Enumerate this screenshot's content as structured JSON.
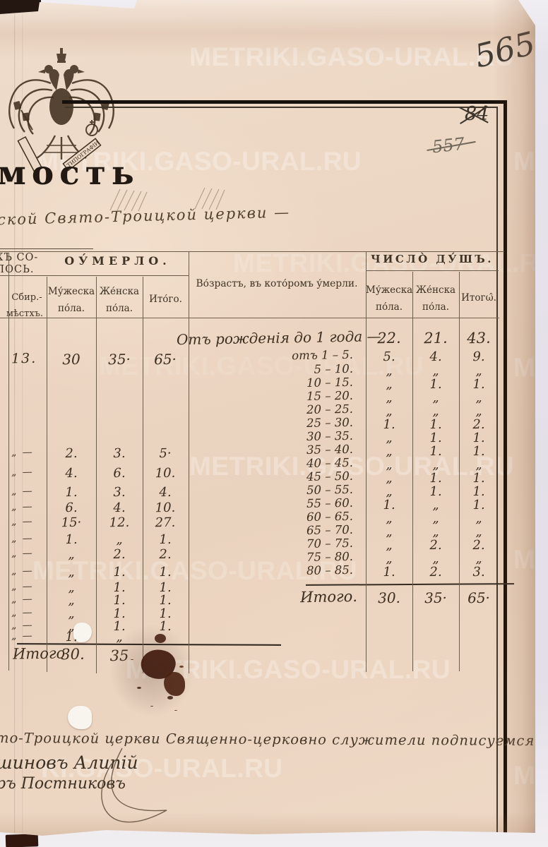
{
  "page": {
    "number": "565",
    "crossed_number_1": "84",
    "crossed_number_2": "557",
    "heading_fragment": "мость",
    "subtitle_handwritten": "ской Свято-Троицкой церкви —",
    "watermark": "METRIKI.GASO-URAL.RU",
    "watermark_cut": "KI.GASO-URAL.RU",
    "watermark_fragment": "MET",
    "stamp_ribbon_text": "ТИПОГРАФІИ"
  },
  "left_table": {
    "partial_header_line1": "ХЪ СО-",
    "partial_header_line2": "ЛОСЬ.",
    "group_header": "ОУ́МЕРЛО.",
    "sub_col_line1": "Сбир.-",
    "sub_col_line2": "мѣстхъ.",
    "col1": {
      "l1": "Му́жеска",
      "l2": "по́ла."
    },
    "col2": {
      "l1": "Же́нска",
      "l2": "по́ла."
    },
    "col3": "Ито́го.",
    "rows": [
      {
        "d": "13.",
        "m": "30",
        "f": "35·",
        "t": "65·"
      },
      {
        "d": "„ —",
        "m": "2.",
        "f": "3.",
        "t": "5·"
      },
      {
        "d": "„ —",
        "m": "4.",
        "f": "6.",
        "t": "10."
      },
      {
        "d": "„ —",
        "m": "1.",
        "f": "3.",
        "t": "4."
      },
      {
        "d": "„ —",
        "m": "6.",
        "f": "4.",
        "t": "10."
      },
      {
        "d": "„ —",
        "m": "15·",
        "f": "12.",
        "t": "27."
      },
      {
        "d": "„ —",
        "m": "1.",
        "f": "„",
        "t": "1."
      },
      {
        "d": "„ —",
        "m": "„",
        "f": "2.",
        "t": "2."
      },
      {
        "d": "„ —",
        "m": "„",
        "f": "1.",
        "t": "1."
      },
      {
        "d": "„ —",
        "m": "„",
        "f": "1.",
        "t": "1."
      },
      {
        "d": "„ —",
        "m": "„",
        "f": "1.",
        "t": "1."
      },
      {
        "d": "„ —",
        "m": "„",
        "f": "1.",
        "t": "1."
      },
      {
        "d": "„ —",
        "m": "„",
        "f": "1.",
        "t": "1."
      },
      {
        "d": "„ —",
        "m": "1.",
        "f": "„",
        "t": ""
      }
    ],
    "total": {
      "label": "Итого",
      "m": "30.",
      "f": "35"
    }
  },
  "right_table": {
    "age_header": "Во́зрастъ, въ кото́ромъ у́мерли.",
    "group_header": "ЧИСЛО̀ ДУ́ШЪ.",
    "col1": {
      "l1": "Му́жеска",
      "l2": "по́ла."
    },
    "col2": {
      "l1": "Же́нска",
      "l2": "по́ла."
    },
    "col3": "Итогω̂.",
    "rows": [
      {
        "age": "Отъ рожденія до 1 года —",
        "m": "22.",
        "f": "21.",
        "t": "43."
      },
      {
        "age": "отъ 1 – 5.",
        "m": "5.",
        "f": "4.",
        "t": "9."
      },
      {
        "age": "5 – 10.",
        "m": "„",
        "f": "„",
        "t": "„"
      },
      {
        "age": "10 – 15.",
        "m": "„",
        "f": "1.",
        "t": "1."
      },
      {
        "age": "15 – 20.",
        "m": "„",
        "f": "„",
        "t": "„"
      },
      {
        "age": "20 – 25.",
        "m": "„",
        "f": "„",
        "t": "„"
      },
      {
        "age": "25 – 30.",
        "m": "1.",
        "f": "1.",
        "t": "2."
      },
      {
        "age": "30 – 35.",
        "m": "„",
        "f": "1.",
        "t": "1."
      },
      {
        "age": "35 – 40.",
        "m": "„",
        "f": "1.",
        "t": "1."
      },
      {
        "age": "40 – 45.",
        "m": "„",
        "f": "„",
        "t": "„"
      },
      {
        "age": "45 – 50.",
        "m": "„",
        "f": "1.",
        "t": "1."
      },
      {
        "age": "50 – 55.",
        "m": "„",
        "f": "1.",
        "t": "1."
      },
      {
        "age": "55 – 60.",
        "m": "1.",
        "f": "„",
        "t": "1."
      },
      {
        "age": "60 – 65.",
        "m": "„",
        "f": "„",
        "t": "„"
      },
      {
        "age": "65 – 70.",
        "m": "„",
        "f": "„",
        "t": "„"
      },
      {
        "age": "70 – 75.",
        "m": "„",
        "f": "2.",
        "t": "2."
      },
      {
        "age": "75 – 80.",
        "m": "„",
        "f": "„",
        "t": "„"
      },
      {
        "age": "80 – 85.",
        "m": "1.",
        "f": "2.",
        "t": "3."
      }
    ],
    "total": {
      "label": "Итого.",
      "m": "30.",
      "f": "35·",
      "t": "65·"
    }
  },
  "footer": {
    "line1": "то-Троицкой церкви Священно-церковно служители подписуемся",
    "signature1": "шиновъ Алипій",
    "signature2": "ръ Постниковъ"
  }
}
